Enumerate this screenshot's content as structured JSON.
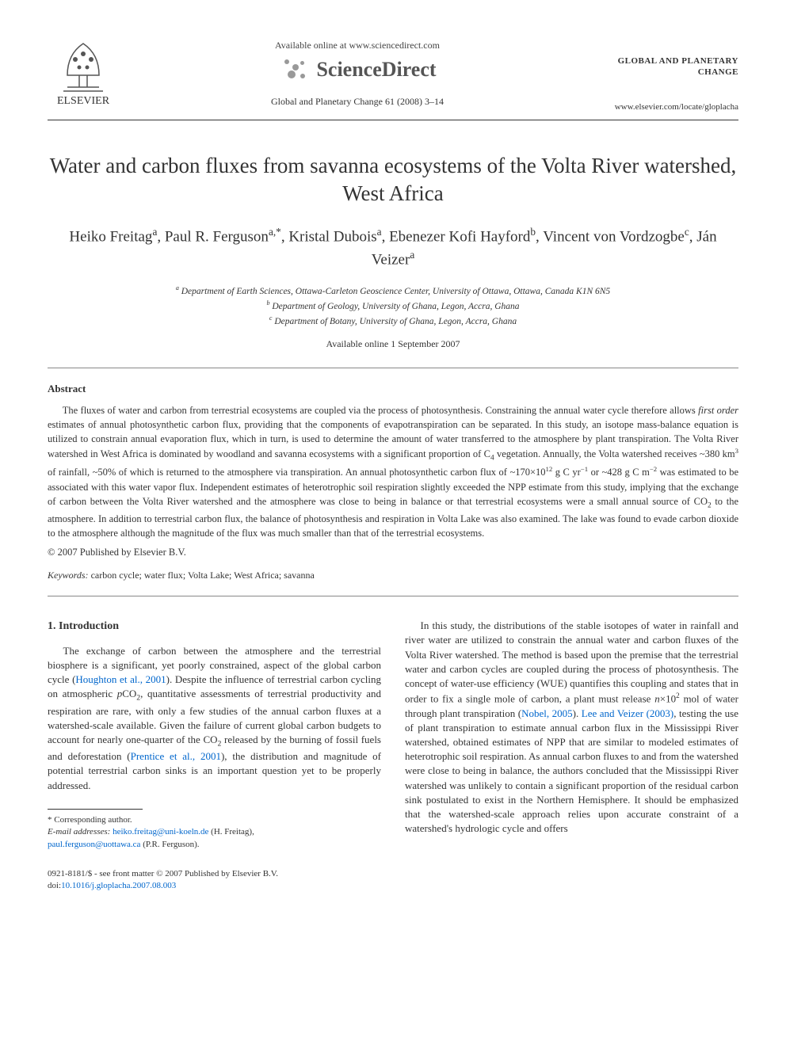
{
  "header": {
    "elsevier_label": "ELSEVIER",
    "available_online": "Available online at www.sciencedirect.com",
    "sciencedirect": "ScienceDirect",
    "citation": "Global and Planetary Change 61 (2008) 3–14",
    "journal_name_line1": "GLOBAL AND PLANETARY",
    "journal_name_line2": "CHANGE",
    "journal_url": "www.elsevier.com/locate/gloplacha"
  },
  "article": {
    "title": "Water and carbon fluxes from savanna ecosystems of the Volta River watershed, West Africa",
    "authors_html": "Heiko Freitag<span class='sup'>a</span>, Paul R. Ferguson<span class='sup'>a,*</span>, Kristal Dubois<span class='sup'>a</span>, Ebenezer Kofi Hayford<span class='sup'>b</span>, Vincent von Vordzogbe<span class='sup'>c</span>, Ján Veizer<span class='sup'>a</span>",
    "affiliations": {
      "a": "Department of Earth Sciences, Ottawa-Carleton Geoscience Center, University of Ottawa, Ottawa, Canada K1N 6N5",
      "b": "Department of Geology, University of Ghana, Legon, Accra, Ghana",
      "c": "Department of Botany, University of Ghana, Legon, Accra, Ghana"
    },
    "date": "Available online 1 September 2007"
  },
  "abstract": {
    "heading": "Abstract",
    "text_html": "The fluxes of water and carbon from terrestrial ecosystems are coupled via the process of photosynthesis. Constraining the annual water cycle therefore allows <span class='italic'>first order</span> estimates of annual photosynthetic carbon flux, providing that the components of evapotranspiration can be separated. In this study, an isotope mass-balance equation is utilized to constrain annual evaporation flux, which in turn, is used to determine the amount of water transferred to the atmosphere by plant transpiration. The Volta River watershed in West Africa is dominated by woodland and savanna ecosystems with a significant proportion of C<span class='subscript'>4</span> vegetation. Annually, the Volta watershed receives ~380 km<span class='sup'>3</span> of rainfall, ~50% of which is returned to the atmosphere via transpiration. An annual photosynthetic carbon flux of ~170×10<span class='sup'>12</span> g C yr<span class='sup'>−1</span> or ~428 g C m<span class='sup'>−2</span> was estimated to be associated with this water vapor flux. Independent estimates of heterotrophic soil respiration slightly exceeded the NPP estimate from this study, implying that the exchange of carbon between the Volta River watershed and the atmosphere was close to being in balance or that terrestrial ecosystems were a small annual source of CO<span class='subscript'>2</span> to the atmosphere. In addition to terrestrial carbon flux, the balance of photosynthesis and respiration in Volta Lake was also examined. The lake was found to evade carbon dioxide to the atmosphere although the magnitude of the flux was much smaller than that of the terrestrial ecosystems.",
    "copyright": "© 2007 Published by Elsevier B.V."
  },
  "keywords": {
    "label": "Keywords:",
    "text": "carbon cycle; water flux; Volta Lake; West Africa; savanna"
  },
  "body": {
    "section_number": "1.",
    "section_title": "Introduction",
    "left_col_html": "The exchange of carbon between the atmosphere and the terrestrial biosphere is a significant, yet poorly constrained, aspect of the global carbon cycle (<span class='inline-link'>Houghton et al., 2001</span>). Despite the influence of terrestrial carbon cycling on atmospheric <span class='italic'>p</span>CO<span class='subscript'>2</span>, quantitative assessments of terrestrial productivity and respiration are rare, with only a few studies of the annual carbon fluxes at a watershed-scale available. Given the failure of current global carbon budgets to account for nearly one-quarter of the CO<span class='subscript'>2</span> released by the burning of fossil fuels and deforestation (<span class='inline-link'>Prentice et al., 2001</span>), the distribution and magnitude of potential terrestrial carbon sinks is an important question yet to be properly addressed.",
    "right_col_html": "In this study, the distributions of the stable isotopes of water in rainfall and river water are utilized to constrain the annual water and carbon fluxes of the Volta River watershed. The method is based upon the premise that the terrestrial water and carbon cycles are coupled during the process of photosynthesis. The concept of water-use efficiency (WUE) quantifies this coupling and states that in order to fix a single mole of carbon, a plant must release <span class='italic'>n</span>×10<span class='sup'>2</span> mol of water through plant transpiration (<span class='inline-link'>Nobel, 2005</span>). <span class='inline-link'>Lee and Veizer (2003)</span>, testing the use of plant transpiration to estimate annual carbon flux in the Mississippi River watershed, obtained estimates of NPP that are similar to modeled estimates of heterotrophic soil respiration. As annual carbon fluxes to and from the watershed were close to being in balance, the authors concluded that the Mississippi River watershed was unlikely to contain a significant proportion of the residual carbon sink postulated to exist in the Northern Hemisphere. It should be emphasized that the watershed-scale approach relies upon accurate constraint of a watershed's hydrologic cycle and offers"
  },
  "footnote": {
    "corresponding": "* Corresponding author.",
    "email_label": "E-mail addresses:",
    "email1": "heiko.freitag@uni-koeln.de",
    "email1_attr": "(H. Freitag),",
    "email2": "paul.ferguson@uottawa.ca",
    "email2_attr": "(P.R. Ferguson)."
  },
  "footer": {
    "line1": "0921-8181/$ - see front matter © 2007 Published by Elsevier B.V.",
    "doi_label": "doi:",
    "doi": "10.1016/j.gloplacha.2007.08.003"
  },
  "colors": {
    "link": "#0066cc",
    "text": "#333333",
    "gray": "#888888"
  }
}
